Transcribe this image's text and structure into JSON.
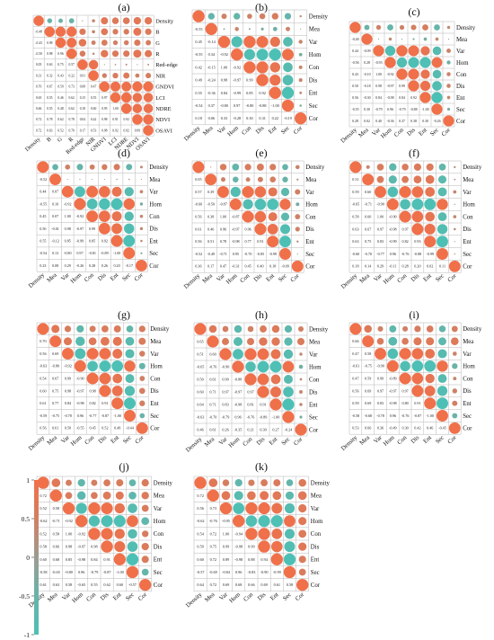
{
  "colors": {
    "positive": "#F0704A",
    "negative": "#4DC0B5",
    "mid": "#9C9C90",
    "grid": "#B5B5B5"
  },
  "colorbar": {
    "ticks": [
      "1",
      "0.5",
      "0",
      "-0.5",
      "-1"
    ]
  },
  "chart_data": [
    {
      "type": "heatmap",
      "panel": "(a)",
      "variables": [
        "Density",
        "B",
        "G",
        "R",
        "Red-edge",
        "NIR",
        "GNDVI",
        "LCI",
        "NDRE",
        "NDVI",
        "OSAVI"
      ],
      "lower": [
        [],
        [
          -0.48
        ],
        [
          -0.43,
          0.98
        ],
        [
          -0.5,
          0.98,
          0.96
        ],
        [
          0.05,
          0.63,
          0.75,
          0.57
        ],
        [
          0.31,
          0.32,
          0.43,
          0.22,
          0.91
        ],
        [
          0.7,
          0.67,
          0.59,
          0.73,
          0.08,
          0.47
        ],
        [
          0.65,
          0.55,
          0.46,
          0.62,
          0.15,
          0.55,
          0.97
        ],
        [
          0.66,
          0.55,
          0.48,
          0.62,
          0.18,
          0.6,
          0.95,
          1.0
        ],
        [
          0.72,
          0.78,
          0.62,
          0.78,
          0.04,
          0.42,
          0.98,
          0.91,
          0.92
        ],
        [
          0.72,
          0.63,
          0.52,
          0.7,
          0.17,
          0.53,
          0.98,
          0.92,
          0.92,
          0.99
        ]
      ],
      "ylim": [
        -1,
        1
      ]
    },
    {
      "type": "heatmap",
      "panel": "(b)",
      "variables": [
        "Density",
        "Mea",
        "Var",
        "Hom",
        "Con",
        "Dis",
        "Ent",
        "Sec",
        "Cor"
      ],
      "lower": [
        [],
        [
          -0.55
        ],
        [
          0.45,
          -0.14
        ],
        [
          -0.55,
          0.34,
          -0.92
        ],
        [
          0.42,
          -0.15,
          1.0,
          -0.92
        ],
        [
          0.49,
          -0.24,
          0.98,
          -0.97,
          0.99
        ],
        [
          0.55,
          -0.36,
          0.84,
          -0.99,
          0.85,
          0.92
        ],
        [
          -0.54,
          0.37,
          -0.8,
          0.97,
          -0.8,
          -0.88,
          -1.0
        ],
        [
          0.18,
          0.06,
          0.33,
          -0.28,
          0.3,
          0.31,
          0.22,
          -0.19
        ]
      ],
      "ylim": [
        -1,
        1
      ]
    },
    {
      "type": "heatmap",
      "panel": "(c)",
      "variables": [
        "Density",
        "Mea",
        "Var",
        "Hom",
        "Con",
        "Dis",
        "Ent",
        "Sec",
        "Cor"
      ],
      "lower": [
        [],
        [
          -0.48
        ],
        [
          0.44,
          -0.09
        ],
        [
          -0.56,
          0.28,
          -0.93
        ],
        [
          0.43,
          -0.1,
          1.0,
          -0.92
        ],
        [
          0.5,
          -0.18,
          0.98,
          -0.97,
          0.99
        ],
        [
          0.56,
          -0.3,
          0.84,
          -0.98,
          0.84,
          0.92
        ],
        [
          -0.55,
          0.3,
          -0.79,
          0.96,
          -0.79,
          -0.88,
          -1.0
        ],
        [
          0.28,
          0.02,
          0.4,
          -0.36,
          0.37,
          0.38,
          0.3,
          -0.26
        ]
      ],
      "ylim": [
        -1,
        1
      ]
    },
    {
      "type": "heatmap",
      "panel": "(d)",
      "variables": [
        "Density",
        "Mea",
        "Var",
        "Hom",
        "Con",
        "Dis",
        "Ent",
        "Sec",
        "Cor"
      ],
      "lower": [
        [],
        [
          -0.52
        ],
        [
          0.44,
          0.07
        ],
        [
          -0.55,
          0.1,
          -0.92
        ],
        [
          0.45,
          0.07,
          1.0,
          -0.92
        ],
        [
          0.5,
          -0.01,
          0.98,
          -0.97,
          0.99
        ],
        [
          0.55,
          -0.12,
          0.85,
          -0.99,
          0.85,
          0.92
        ],
        [
          -0.54,
          0.13,
          -0.8,
          0.97,
          -0.81,
          -0.89,
          -1.0
        ],
        [
          0.23,
          0.08,
          0.29,
          -0.26,
          0.28,
          0.26,
          0.2,
          -0.17
        ]
      ],
      "ylim": [
        -1,
        1
      ]
    },
    {
      "type": "heatmap",
      "panel": "(e)",
      "variables": [
        "Density",
        "Mea",
        "Var",
        "Hom",
        "Con",
        "Dis",
        "Ent",
        "Sec",
        "Cor"
      ],
      "lower": [
        [],
        [
          0.05
        ],
        [
          0.57,
          0.39
        ],
        [
          -0.6,
          -0.5,
          -0.87
        ],
        [
          0.56,
          0.38,
          1.0,
          -0.87
        ],
        [
          0.61,
          0.46,
          0.96,
          -0.97,
          0.96
        ],
        [
          0.56,
          0.51,
          0.78,
          -0.98,
          0.77,
          0.91
        ],
        [
          -0.52,
          -0.49,
          -0.71,
          0.95,
          -0.7,
          -0.85,
          -0.99
        ],
        [
          0.36,
          0.17,
          0.47,
          -0.31,
          0.45,
          0.4,
          0.18,
          -0.09
        ]
      ],
      "ylim": [
        -1,
        1
      ]
    },
    {
      "type": "heatmap",
      "panel": "(f)",
      "variables": [
        "Density",
        "Mea",
        "Var",
        "Hom",
        "Con",
        "Dis",
        "Ent",
        "Sec",
        "Cor"
      ],
      "lower": [
        [],
        [
          0.31
        ],
        [
          0.59,
          0.6
        ],
        [
          -0.65,
          -0.71,
          -0.9
        ],
        [
          0.58,
          0.6,
          1.0,
          -0.9
        ],
        [
          0.63,
          0.67,
          0.97,
          -0.98,
          0.97
        ],
        [
          0.63,
          0.75,
          0.83,
          -0.99,
          0.82,
          0.93
        ],
        [
          -0.6,
          -0.7,
          -0.77,
          0.96,
          -0.76,
          -0.88,
          -0.99
        ],
        [
          0.18,
          0.14,
          0.29,
          -0.11,
          0.28,
          0.2,
          0.02,
          0.11
        ]
      ],
      "ylim": [
        -1,
        1
      ]
    },
    {
      "type": "heatmap",
      "panel": "(g)",
      "variables": [
        "Density",
        "Mea",
        "Var",
        "Hom",
        "Con",
        "Dis",
        "Ent",
        "Sec",
        "Cor"
      ],
      "lower": [
        [],
        [
          0.7
        ],
        [
          0.56,
          0.69
        ],
        [
          -0.63,
          -0.8,
          -0.92
        ],
        [
          0.54,
          0.67,
          0.99,
          -0.9
        ],
        [
          0.6,
          0.75,
          0.98,
          -0.97,
          0.98
        ],
        [
          0.61,
          0.77,
          0.84,
          -0.98,
          0.82,
          0.91
        ],
        [
          -0.59,
          -0.75,
          -0.78,
          0.96,
          -0.77,
          -0.87,
          -1.0
        ],
        [
          0.56,
          0.61,
          0.5,
          -0.55,
          0.45,
          0.52,
          0.49,
          -0.44
        ]
      ],
      "ylim": [
        -1,
        1
      ]
    },
    {
      "type": "heatmap",
      "panel": "(h)",
      "variables": [
        "Density",
        "Mea",
        "Var",
        "Hom",
        "Con",
        "Dis",
        "Ent",
        "Sec",
        "Cor"
      ],
      "lower": [
        [],
        [
          0.65
        ],
        [
          0.51,
          0.6
        ],
        [
          -0.65,
          -0.76,
          -0.9
        ],
        [
          0.5,
          0.61,
          0.99,
          -0.88
        ],
        [
          0.6,
          0.71,
          0.97,
          -0.97,
          0.97
        ],
        [
          0.64,
          0.71,
          0.83,
          -0.98,
          0.81,
          0.91
        ],
        [
          -0.63,
          -0.7,
          -0.79,
          0.96,
          -0.76,
          -0.89,
          -1.0
        ],
        [
          0.46,
          0.61,
          0.26,
          -0.35,
          0.21,
          0.3,
          0.27,
          -0.24
        ]
      ],
      "ylim": [
        -1,
        1
      ]
    },
    {
      "type": "heatmap",
      "panel": "(i)",
      "variables": [
        "Density",
        "Mea",
        "Var",
        "Hom",
        "Con",
        "Dis",
        "Ent",
        "Sec",
        "Cor"
      ],
      "lower": [
        [],
        [
          0.66
        ],
        [
          0.47,
          0.58
        ],
        [
          -0.61,
          -0.75,
          -0.9
        ],
        [
          0.47,
          0.59,
          0.99,
          -0.89
        ],
        [
          0.56,
          0.69,
          0.97,
          -0.97,
          0.97
        ],
        [
          0.59,
          0.69,
          0.83,
          -0.98,
          0.8,
          0.91
        ],
        [
          -0.58,
          -0.68,
          -0.78,
          0.96,
          -0.76,
          -0.87,
          -1.0
        ],
        [
          0.53,
          0.66,
          0.36,
          -0.49,
          0.3,
          0.42,
          0.46,
          -0.45
        ]
      ],
      "ylim": [
        -1,
        1
      ]
    },
    {
      "type": "heatmap",
      "panel": "(j)",
      "variables": [
        "Density",
        "Mea",
        "Var",
        "Hom",
        "Con",
        "Dis",
        "Ent",
        "Sec",
        "Cor"
      ],
      "lower": [
        [],
        [
          0.72
        ],
        [
          0.52,
          0.58
        ],
        [
          -0.62,
          -0.71,
          -0.92
        ],
        [
          0.52,
          0.58,
          1.0,
          -0.92
        ],
        [
          0.58,
          0.66,
          0.98,
          -0.97,
          0.98
        ],
        [
          0.6,
          0.68,
          0.85,
          -0.98,
          0.84,
          0.91
        ],
        [
          -0.58,
          -0.65,
          -0.8,
          0.96,
          -0.79,
          -0.87,
          -1.0
        ],
        [
          0.61,
          0.63,
          0.58,
          -0.65,
          0.55,
          0.62,
          0.6,
          -0.57
        ]
      ],
      "ylim": [
        -1,
        1
      ]
    },
    {
      "type": "heatmap",
      "panel": "(k)",
      "variables": [
        "Density",
        "Mea",
        "Var",
        "Hom",
        "Con",
        "Dis",
        "Ent",
        "Sec",
        "Cor"
      ],
      "lower": [
        [],
        [
          0.72
        ],
        [
          0.56,
          0.73
        ],
        [
          -0.62,
          -0.76,
          -0.95
        ],
        [
          0.54,
          0.72,
          1.0,
          -0.94
        ],
        [
          0.59,
          0.75,
          0.99,
          -0.98,
          0.99
        ],
        [
          0.6,
          0.72,
          0.89,
          -0.98,
          0.88,
          0.94
        ],
        [
          -0.57,
          -0.69,
          -0.84,
          0.96,
          -0.83,
          -0.9,
          -0.99
        ],
        [
          0.64,
          0.72,
          0.69,
          0.68,
          0.66,
          0.69,
          0.61,
          0.58
        ]
      ],
      "ylim": [
        -1,
        1
      ]
    }
  ]
}
